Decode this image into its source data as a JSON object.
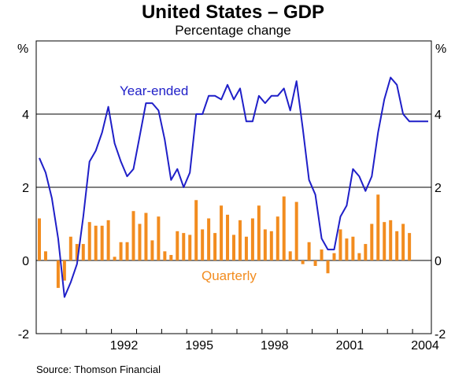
{
  "chart_data": {
    "type": "bar+line",
    "title": "United States – GDP",
    "subtitle": "Percentage change",
    "ylabel_left": "%",
    "ylabel_right": "%",
    "source": "Source: Thomson Financial",
    "ylim": [
      -2,
      6
    ],
    "yticks": [
      -2,
      0,
      2,
      4
    ],
    "x_start": 1989.0,
    "x_end": 2004.75,
    "xtick_years": [
      "1992",
      "1995",
      "1998",
      "2001",
      "2004"
    ],
    "grid": "horizontal",
    "series": [
      {
        "name": "Year-ended",
        "type": "line",
        "color": "#1f1fc8",
        "x": [
          1989.125,
          1989.375,
          1989.625,
          1989.875,
          1990.125,
          1990.375,
          1990.625,
          1990.875,
          1991.125,
          1991.375,
          1991.625,
          1991.875,
          1992.125,
          1992.375,
          1992.625,
          1992.875,
          1993.125,
          1993.375,
          1993.625,
          1993.875,
          1994.125,
          1994.375,
          1994.625,
          1994.875,
          1995.125,
          1995.375,
          1995.625,
          1995.875,
          1996.125,
          1996.375,
          1996.625,
          1996.875,
          1997.125,
          1997.375,
          1997.625,
          1997.875,
          1998.125,
          1998.375,
          1998.625,
          1998.875,
          1999.125,
          1999.375,
          1999.625,
          1999.875,
          2000.125,
          2000.375,
          2000.625,
          2000.875,
          2001.125,
          2001.375,
          2001.625,
          2001.875,
          2002.125,
          2002.375,
          2002.625,
          2002.875,
          2003.125,
          2003.375,
          2003.625,
          2003.875,
          2004.125,
          2004.375,
          2004.625
        ],
        "values": [
          2.8,
          2.4,
          1.7,
          0.6,
          -1.0,
          -0.6,
          -0.1,
          1.2,
          2.7,
          3.0,
          3.5,
          4.2,
          3.2,
          2.7,
          2.3,
          2.5,
          3.4,
          4.3,
          4.3,
          4.1,
          3.3,
          2.2,
          2.5,
          2.0,
          2.4,
          4.0,
          4.0,
          4.5,
          4.5,
          4.4,
          4.8,
          4.4,
          4.7,
          3.8,
          3.8,
          4.5,
          4.3,
          4.5,
          4.5,
          4.7,
          4.1,
          4.9,
          3.6,
          2.2,
          1.8,
          0.6,
          0.3,
          0.3,
          1.2,
          1.5,
          2.5,
          2.3,
          1.9,
          2.3,
          3.5,
          4.4,
          5.0,
          4.8,
          4.0,
          3.8,
          3.8,
          3.8,
          3.8
        ]
      },
      {
        "name": "Quarterly",
        "type": "bar",
        "color": "#f28c1f",
        "x": [
          1989.125,
          1989.375,
          1989.625,
          1989.875,
          1990.125,
          1990.375,
          1990.625,
          1990.875,
          1991.125,
          1991.375,
          1991.625,
          1991.875,
          1992.125,
          1992.375,
          1992.625,
          1992.875,
          1993.125,
          1993.375,
          1993.625,
          1993.875,
          1994.125,
          1994.375,
          1994.625,
          1994.875,
          1995.125,
          1995.375,
          1995.625,
          1995.875,
          1996.125,
          1996.375,
          1996.625,
          1996.875,
          1997.125,
          1997.375,
          1997.625,
          1997.875,
          1998.125,
          1998.375,
          1998.625,
          1998.875,
          1999.125,
          1999.375,
          1999.625,
          1999.875,
          2000.125,
          2000.375,
          2000.625,
          2000.875,
          2001.125,
          2001.375,
          2001.625,
          2001.875,
          2002.125,
          2002.375,
          2002.625,
          2002.875,
          2003.125,
          2003.375,
          2003.625,
          2003.875,
          2004.125,
          2004.375,
          2004.625
        ],
        "values": [
          1.15,
          0.25,
          0.0,
          -0.75,
          -0.55,
          0.65,
          0.45,
          0.45,
          1.05,
          0.95,
          0.95,
          1.1,
          0.1,
          0.5,
          0.5,
          1.35,
          1.0,
          1.3,
          0.55,
          1.2,
          0.25,
          0.15,
          0.8,
          0.75,
          0.7,
          1.65,
          0.85,
          1.15,
          0.75,
          1.5,
          1.25,
          0.7,
          1.1,
          0.65,
          1.15,
          1.5,
          0.85,
          0.8,
          1.2,
          1.75,
          0.25,
          1.6,
          -0.1,
          0.5,
          -0.15,
          0.3,
          -0.35,
          0.2,
          0.85,
          0.6,
          0.65,
          0.2,
          0.45,
          1.0,
          1.8,
          1.05,
          1.1,
          0.8,
          1.0,
          0.75,
          0.0,
          0.0,
          0.0
        ]
      }
    ]
  }
}
